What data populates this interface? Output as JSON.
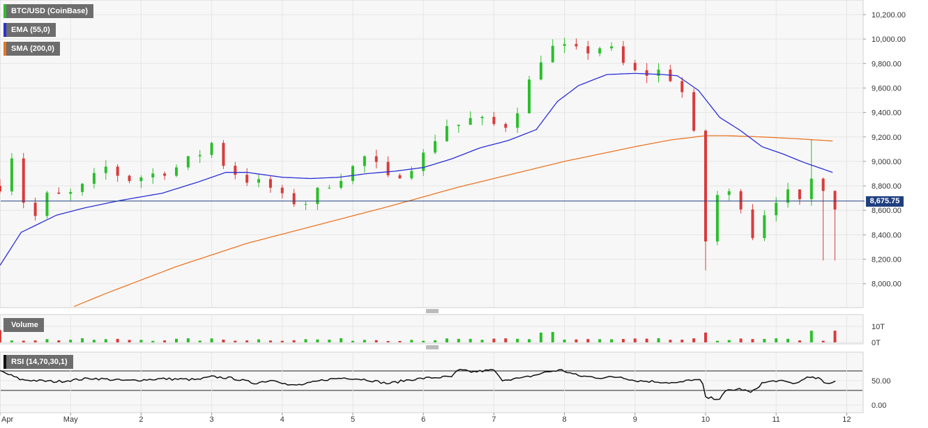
{
  "legend": {
    "main": "BTC/USD (CoinBase)",
    "ema": "EMA (55,0)",
    "sma": "SMA (200,0)",
    "volume": "Volume",
    "rsi": "RSI (14,70,30,1)"
  },
  "colors": {
    "up": "#2bbf2b",
    "down": "#d83c3c",
    "ema": "#2a2fd8",
    "sma": "#ec7522",
    "last_price_line": "#1f3f7f",
    "grid": "#e6e6e6",
    "label_bg": "#6d6d6d"
  },
  "last_price": "8,675.75",
  "chart_data": [
    {
      "type": "candlestick",
      "title": "BTC/USD (CoinBase)",
      "x_tick_labels": [
        "Apr",
        "May",
        "2",
        "3",
        "4",
        "5",
        "6",
        "7",
        "8",
        "9",
        "10",
        "11",
        "12"
      ],
      "y_tick_labels": [
        "10,200.00",
        "10,000.00",
        "9,800.00",
        "9,600.00",
        "9,400.00",
        "9,200.00",
        "9,000.00",
        "8,800.00",
        "8,600.00",
        "8,400.00",
        "8,200.00",
        "8,000.00"
      ],
      "ylim": [
        7800,
        10300
      ],
      "grid": true,
      "last_value": 8675.75,
      "ohlc_anchor_days": [
        0,
        0.1,
        0.2,
        0.35,
        0.5,
        0.7,
        0.9,
        1.2,
        1.5,
        1.8,
        2.2,
        2.5,
        2.8,
        3.0,
        3.2,
        3.5,
        3.8,
        4.0,
        4.3,
        4.6,
        4.9,
        5.2,
        5.5,
        5.8,
        6.0,
        6.3,
        6.5,
        6.7,
        7.0,
        7.2,
        7.4,
        7.6,
        7.75,
        7.9,
        8.1,
        8.3,
        8.6,
        8.9,
        9.1,
        9.3,
        9.6,
        9.8,
        9.95,
        10.0,
        10.05,
        10.3,
        10.5,
        10.7,
        10.75,
        10.9,
        11.1,
        11.3,
        11.4,
        11.5,
        11.6,
        11.7,
        11.75,
        11.85
      ],
      "close_anchor_values": [
        8800,
        9350,
        8900,
        8650,
        8550,
        8750,
        8700,
        8800,
        8950,
        8850,
        8900,
        8950,
        9050,
        9150,
        8950,
        8850,
        8800,
        8700,
        8650,
        8800,
        8900,
        9050,
        8850,
        8950,
        9050,
        9300,
        9300,
        9350,
        9300,
        9300,
        9500,
        9800,
        9900,
        9950,
        9900,
        9900,
        9950,
        9750,
        9700,
        9750,
        9650,
        9400,
        8550,
        8350,
        8700,
        8750,
        8650,
        8350,
        8500,
        8650,
        8750,
        8700,
        8550,
        8850,
        8900,
        8750,
        8450,
        8680
      ],
      "ema_anchor_days": [
        0,
        0.3,
        0.8,
        1.2,
        1.7,
        2.3,
        2.8,
        3.2,
        3.5,
        4.0,
        4.4,
        4.8,
        5.2,
        5.6,
        6.0,
        6.4,
        6.8,
        7.2,
        7.6,
        7.9,
        8.2,
        8.6,
        9.0,
        9.4,
        9.6,
        9.9,
        10.2,
        10.5,
        10.8,
        11.1,
        11.4,
        11.6,
        11.85
      ],
      "ema_anchor_values": [
        8150,
        8420,
        8560,
        8620,
        8680,
        8740,
        8830,
        8910,
        8910,
        8870,
        8860,
        8870,
        8900,
        8920,
        8950,
        9020,
        9110,
        9170,
        9260,
        9490,
        9620,
        9710,
        9720,
        9710,
        9700,
        9580,
        9360,
        9250,
        9120,
        9060,
        8990,
        8950,
        8900
      ],
      "sma_anchor_days": [
        0.95,
        1.5,
        2.5,
        3.5,
        4.5,
        5.5,
        6.5,
        7.5,
        8.0,
        8.5,
        9.0,
        9.5,
        10.0,
        10.3,
        10.8,
        11.3,
        11.85
      ],
      "sma_anchor_values": [
        7790,
        7920,
        8140,
        8330,
        8480,
        8630,
        8790,
        8930,
        9000,
        9060,
        9120,
        9175,
        9210,
        9210,
        9200,
        9185,
        9165
      ]
    },
    {
      "type": "bar",
      "title": "Volume",
      "y_tick_labels": [
        "10T",
        "0T"
      ],
      "spike_day": 10.0,
      "secondary_spike_days": [
        0.0,
        7.75,
        9.95,
        11.5,
        11.8
      ]
    },
    {
      "type": "line",
      "title": "RSI (14,70,30,1)",
      "y_tick_labels": [
        "50.00",
        "0.00"
      ],
      "ylim": [
        0,
        100
      ],
      "levels": [
        30,
        70
      ],
      "x_anchor_days": [
        0,
        0.3,
        0.8,
        1.3,
        1.8,
        2.3,
        2.8,
        3.0,
        3.3,
        3.6,
        3.9,
        4.1,
        4.3,
        4.6,
        4.9,
        5.2,
        5.5,
        5.8,
        6.1,
        6.4,
        6.5,
        6.7,
        7.0,
        7.1,
        7.4,
        7.6,
        7.75,
        7.95,
        8.2,
        8.5,
        8.8,
        9.0,
        9.3,
        9.6,
        9.8,
        9.95,
        10.0,
        10.2,
        10.3,
        10.5,
        10.65,
        10.8,
        11.0,
        11.3,
        11.4,
        11.6,
        11.7,
        11.85
      ],
      "y_anchor_values": [
        70,
        52,
        48,
        55,
        50,
        54,
        52,
        58,
        55,
        45,
        52,
        40,
        42,
        52,
        56,
        52,
        44,
        52,
        56,
        58,
        72,
        68,
        72,
        52,
        55,
        62,
        68,
        72,
        60,
        56,
        58,
        50,
        48,
        45,
        52,
        50,
        15,
        13,
        30,
        33,
        25,
        45,
        50,
        44,
        56,
        55,
        43,
        50
      ]
    }
  ]
}
